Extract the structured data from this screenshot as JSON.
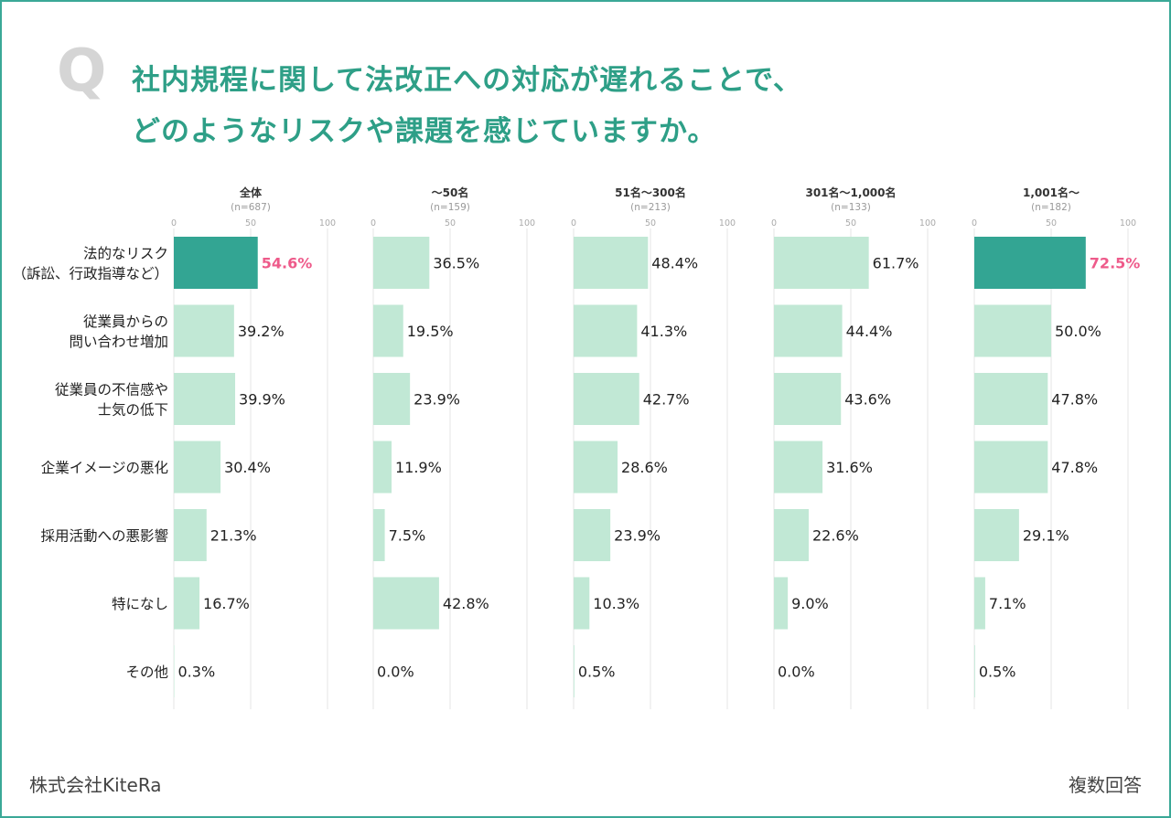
{
  "title": {
    "q_mark": "Q",
    "line1": "社内規程に関して法改正への対応が遅れることで、",
    "line2": "どのようなリスクや課題を感じていますか。"
  },
  "footer": {
    "company": "株式会社KiteRa",
    "note": "複数回答"
  },
  "colors": {
    "title": "#2e9f87",
    "bar": "#c1e8d5",
    "bar_highlight": "#33a593",
    "highlight_text": "#ee5a8a",
    "grid": "#e4e4e4",
    "frame": "#3aa897"
  },
  "chart_data": {
    "type": "bar",
    "orientation": "horizontal",
    "categories": [
      [
        "法的なリスク",
        "（訴訟、行政指導など）"
      ],
      [
        "従業員からの",
        "問い合わせ増加"
      ],
      [
        "従業員の不信感や",
        "士気の低下"
      ],
      [
        "企業イメージの悪化"
      ],
      [
        "採用活動への悪影響"
      ],
      [
        "特になし"
      ],
      [
        "その他"
      ]
    ],
    "xlim": [
      0,
      100
    ],
    "ticks": [
      0,
      50,
      100
    ],
    "value_suffix": "%",
    "panels": [
      {
        "name": "全体",
        "n": "(n=687)",
        "values": [
          54.6,
          39.2,
          39.9,
          30.4,
          21.3,
          16.7,
          0.3
        ],
        "highlight": [
          0
        ]
      },
      {
        "name": "〜50名",
        "n": "(n=159)",
        "values": [
          36.5,
          19.5,
          23.9,
          11.9,
          7.5,
          42.8,
          0.0
        ],
        "highlight": []
      },
      {
        "name": "51名〜300名",
        "n": "(n=213)",
        "values": [
          48.4,
          41.3,
          42.7,
          28.6,
          23.9,
          10.3,
          0.5
        ],
        "highlight": []
      },
      {
        "name": "301名〜1,000名",
        "n": "(n=133)",
        "values": [
          61.7,
          44.4,
          43.6,
          31.6,
          22.6,
          9.0,
          0.0
        ],
        "highlight": []
      },
      {
        "name": "1,001名〜",
        "n": "(n=182)",
        "values": [
          72.5,
          50.0,
          47.8,
          47.8,
          29.1,
          7.1,
          0.5
        ],
        "highlight": [
          0
        ]
      }
    ]
  }
}
